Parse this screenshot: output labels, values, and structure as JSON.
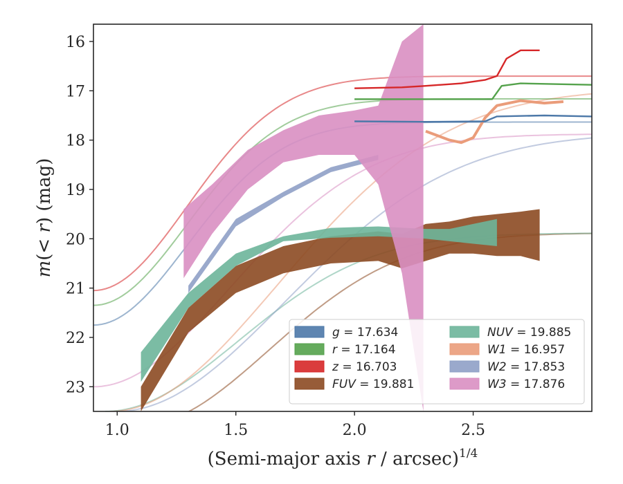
{
  "chart_data": {
    "type": "line",
    "xlabel": "(Semi-major axis r / arcsec)^1/4",
    "ylabel": "m(< r) (mag)",
    "xlim": [
      0.9,
      3.0
    ],
    "ylim": [
      23.5,
      15.65
    ],
    "y_inverted": true,
    "x_ticks": [
      {
        "value": 1.0,
        "label": "1.0"
      },
      {
        "value": 1.5,
        "label": "1.5"
      },
      {
        "value": 2.0,
        "label": "2.0"
      },
      {
        "value": 2.5,
        "label": "2.5"
      }
    ],
    "y_ticks": [
      {
        "value": 16,
        "label": "16"
      },
      {
        "value": 17,
        "label": "17"
      },
      {
        "value": 18,
        "label": "18"
      },
      {
        "value": 19,
        "label": "19"
      },
      {
        "value": 20,
        "label": "20"
      },
      {
        "value": 21,
        "label": "21"
      },
      {
        "value": 22,
        "label": "22"
      },
      {
        "value": 23,
        "label": "23"
      }
    ],
    "legend": {
      "placement": "lower-right",
      "columns": 2,
      "entries": [
        {
          "series": "g",
          "label": "g = 17.634"
        },
        {
          "series": "r",
          "label": "r = 17.164"
        },
        {
          "series": "z",
          "label": "z = 16.703"
        },
        {
          "series": "FUV",
          "label": "FUV = 19.881"
        },
        {
          "series": "NUV",
          "label": "NUV = 19.885"
        },
        {
          "series": "W1",
          "label": "W1 = 16.957"
        },
        {
          "series": "W2",
          "label": "W2 = 17.853"
        },
        {
          "series": "W3",
          "label": "W3 = 17.876"
        }
      ]
    },
    "series": [
      {
        "name": "FUV",
        "color": "#8c4a22",
        "model": {
          "asymptote": 19.881,
          "start": 23.8,
          "x_start": 1.08,
          "k": 1.6
        },
        "band_x": [
          1.1,
          1.3,
          1.5,
          1.7,
          1.9,
          2.1,
          2.2,
          2.3,
          2.4,
          2.5,
          2.6,
          2.7,
          2.78
        ],
        "band_lo": [
          23.5,
          21.9,
          21.1,
          20.7,
          20.5,
          20.45,
          20.6,
          20.45,
          20.3,
          20.3,
          20.35,
          20.35,
          20.45
        ],
        "band_hi": [
          23.0,
          21.4,
          20.55,
          20.15,
          19.95,
          19.85,
          19.9,
          19.7,
          19.65,
          19.55,
          19.5,
          19.45,
          19.4
        ]
      },
      {
        "name": "NUV",
        "color": "#6db59a",
        "model": {
          "asymptote": 19.885,
          "start": 23.5,
          "x_start": 0.95,
          "k": 1.6
        },
        "band_x": [
          1.1,
          1.3,
          1.5,
          1.7,
          1.9,
          2.1,
          2.3,
          2.4,
          2.5,
          2.6
        ],
        "band_lo": [
          22.9,
          21.4,
          20.55,
          20.05,
          19.98,
          19.95,
          20.0,
          20.05,
          20.1,
          20.15
        ],
        "band_hi": [
          22.3,
          21.1,
          20.3,
          19.95,
          19.78,
          19.75,
          19.8,
          19.8,
          19.7,
          19.6
        ]
      },
      {
        "name": "W2",
        "color": "#8fa0c6",
        "model": {
          "asymptote": 17.853,
          "start": 23.5,
          "x_start": 1.0,
          "k": 1.0
        },
        "band_x": [
          1.3,
          1.5,
          1.7,
          1.9,
          2.1
        ],
        "band_lo": [
          21.1,
          19.75,
          19.15,
          18.65,
          18.4
        ],
        "band_hi": [
          20.95,
          19.6,
          19.05,
          18.55,
          18.3
        ]
      },
      {
        "name": "W3",
        "color": "#d98fc2",
        "model": {
          "asymptote": 17.876,
          "start": 23.0,
          "x_start": 0.9,
          "k": 1.5
        },
        "band_x": [
          1.28,
          1.4,
          1.55,
          1.7,
          1.85,
          2.0,
          2.1,
          2.2,
          2.29
        ],
        "band_lo": [
          20.8,
          19.9,
          19.0,
          18.45,
          18.3,
          18.3,
          18.9,
          20.7,
          23.5
        ],
        "band_hi": [
          19.4,
          18.9,
          18.2,
          17.8,
          17.5,
          17.4,
          17.3,
          16.0,
          15.65
        ]
      },
      {
        "name": "W1",
        "color": "#ea9c7a",
        "model": {
          "asymptote": 16.957,
          "start": 23.5,
          "x_start": 0.97,
          "k": 1.0
        },
        "line_x": [
          2.3,
          2.4,
          2.45,
          2.5,
          2.55,
          2.6,
          2.7,
          2.8,
          2.88
        ],
        "line_y": [
          17.82,
          18.0,
          18.05,
          17.95,
          17.55,
          17.3,
          17.2,
          17.25,
          17.22
        ]
      },
      {
        "name": "g",
        "color": "#4c78a8",
        "model": {
          "asymptote": 17.634,
          "start": 21.75,
          "x_start": 0.9,
          "k": 3.2
        },
        "line_x": [
          2.0,
          2.3,
          2.55,
          2.6,
          2.8,
          3.0
        ],
        "line_y": [
          17.62,
          17.63,
          17.62,
          17.52,
          17.5,
          17.52
        ]
      },
      {
        "name": "r",
        "color": "#54a24b",
        "model": {
          "asymptote": 17.164,
          "start": 21.35,
          "x_start": 0.9,
          "k": 3.2
        },
        "line_x": [
          2.0,
          2.3,
          2.58,
          2.62,
          2.7,
          3.0
        ],
        "line_y": [
          17.17,
          17.17,
          17.17,
          16.9,
          16.85,
          16.88
        ]
      },
      {
        "name": "z",
        "color": "#d62728",
        "model": {
          "asymptote": 16.703,
          "start": 21.05,
          "x_start": 0.9,
          "k": 3.2
        },
        "line_x": [
          2.0,
          2.2,
          2.3,
          2.45,
          2.55,
          2.6,
          2.64,
          2.7,
          2.78
        ],
        "line_y": [
          16.95,
          16.93,
          16.9,
          16.85,
          16.78,
          16.7,
          16.35,
          16.18,
          16.18
        ]
      }
    ]
  }
}
